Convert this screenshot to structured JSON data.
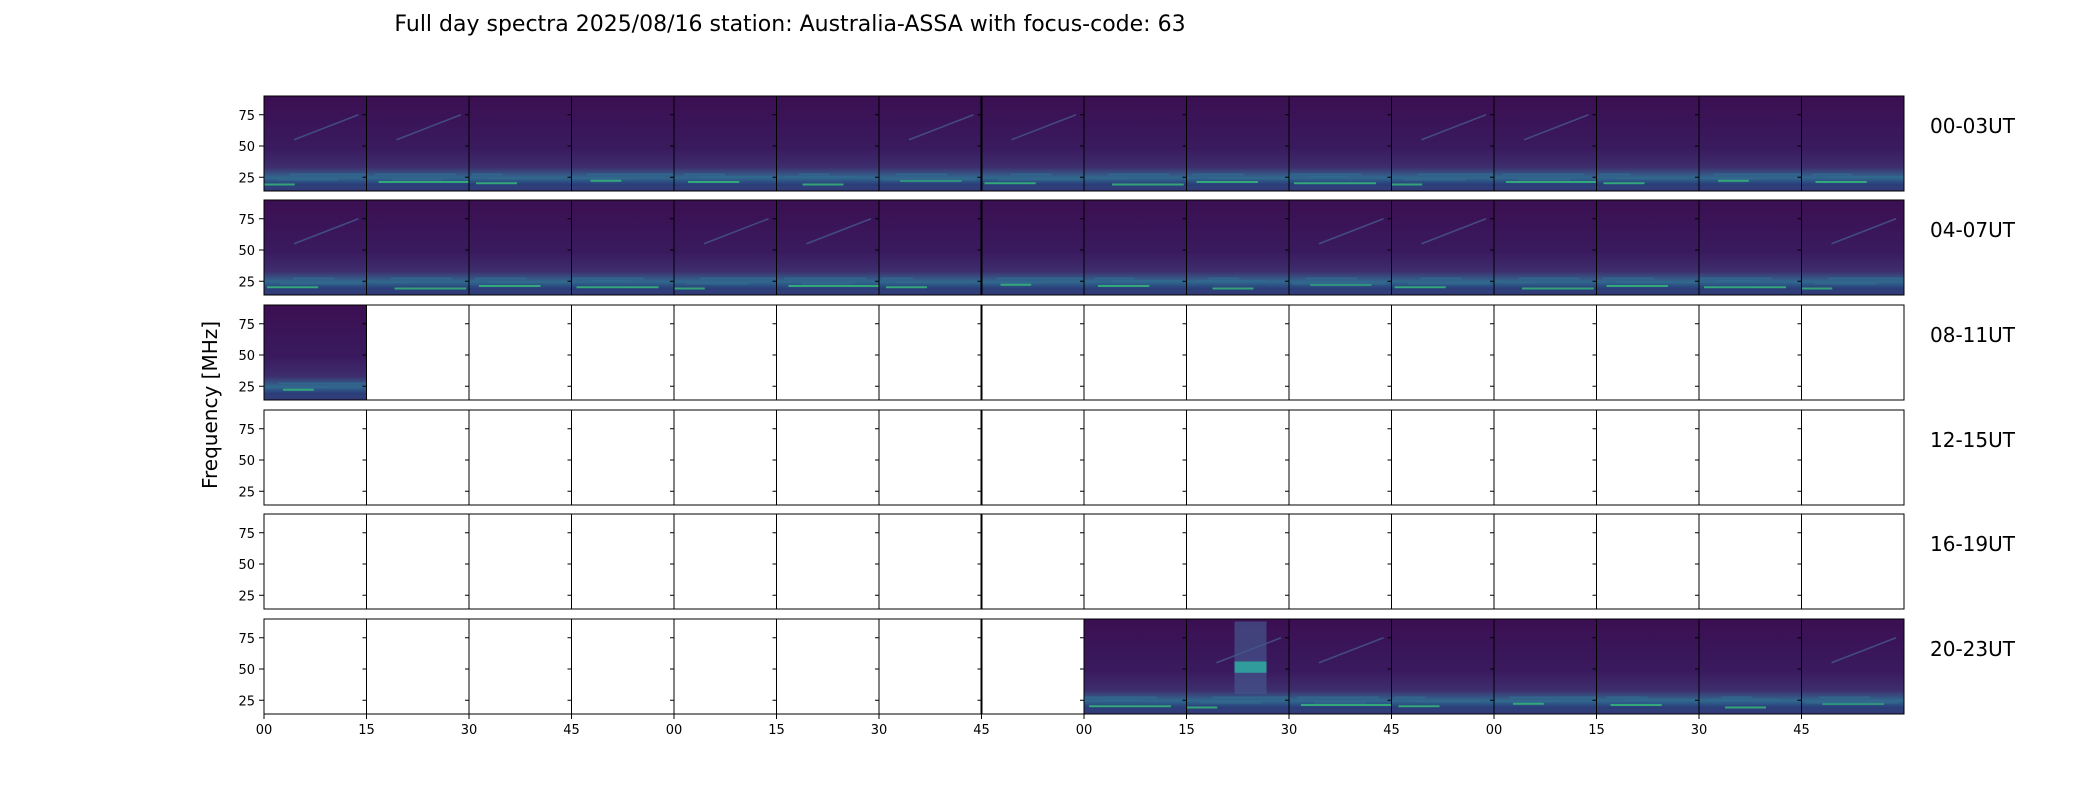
{
  "title": "Full day spectra 2025/08/16 station: Australia-ASSA with focus-code: 63",
  "colors": {
    "background": "#ffffff",
    "axis": "#000000",
    "spectrum_low": "#3b0f52",
    "spectrum_mid": "#31688e",
    "spectrum_high": "#35b779",
    "spectrum_peak": "#b5de2b"
  },
  "chart_data": {
    "type": "heatmap",
    "ylabel": "Frequency [MHz]",
    "ylim": [
      14,
      90
    ],
    "yticks": [
      25,
      50,
      75
    ],
    "ytick_labels": [
      "25",
      "50",
      "75"
    ],
    "xtick_labels": [
      "00",
      "15",
      "30",
      "45",
      "00",
      "15",
      "30",
      "45",
      "00",
      "15",
      "30",
      "45",
      "00",
      "15",
      "30",
      "45"
    ],
    "minutes_per_panel": 15,
    "panels_per_row": 16,
    "rows": [
      {
        "label": "00-03UT",
        "data_panels": [
          true,
          true,
          true,
          true,
          true,
          true,
          true,
          true,
          true,
          true,
          true,
          true,
          true,
          true,
          true,
          true
        ]
      },
      {
        "label": "04-07UT",
        "data_panels": [
          true,
          true,
          true,
          true,
          true,
          true,
          true,
          true,
          true,
          true,
          true,
          true,
          true,
          true,
          true,
          true
        ]
      },
      {
        "label": "08-11UT",
        "data_panels": [
          true,
          false,
          false,
          false,
          false,
          false,
          false,
          false,
          false,
          false,
          false,
          false,
          false,
          false,
          false,
          false
        ]
      },
      {
        "label": "12-15UT",
        "data_panels": [
          false,
          false,
          false,
          false,
          false,
          false,
          false,
          false,
          false,
          false,
          false,
          false,
          false,
          false,
          false,
          false
        ]
      },
      {
        "label": "16-19UT",
        "data_panels": [
          false,
          false,
          false,
          false,
          false,
          false,
          false,
          false,
          false,
          false,
          false,
          false,
          false,
          false,
          false,
          false
        ]
      },
      {
        "label": "20-23UT",
        "data_panels": [
          false,
          false,
          false,
          false,
          false,
          false,
          false,
          false,
          true,
          true,
          true,
          true,
          true,
          true,
          true,
          true
        ]
      }
    ]
  }
}
